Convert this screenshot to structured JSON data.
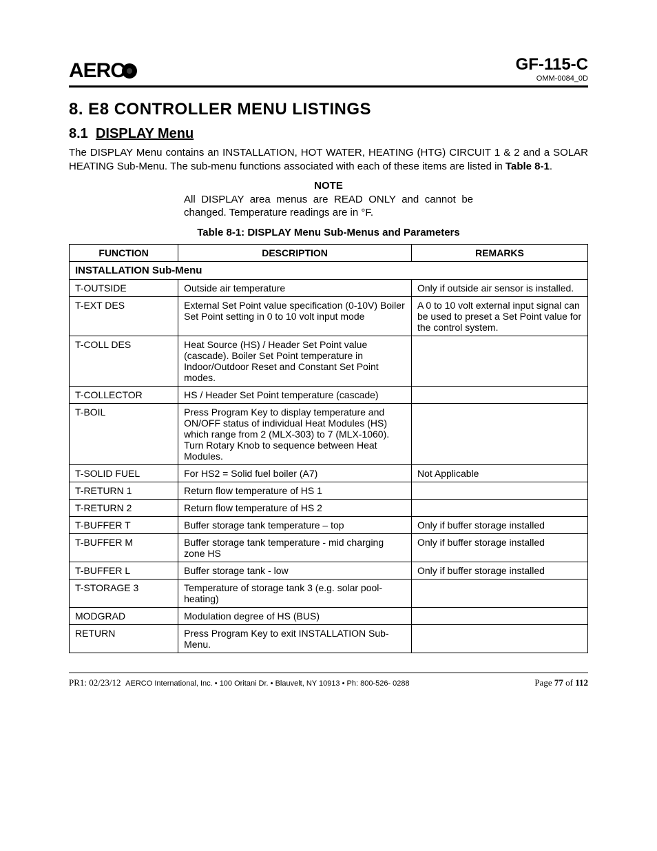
{
  "header": {
    "logo_text": "AERC",
    "doc_code": "GF-115-C",
    "doc_sub": "OMM-0084_0D"
  },
  "chapter": {
    "title": "8.  E8 CONTROLLER MENU LISTINGS"
  },
  "section": {
    "number": "8.1",
    "title": "DISPLAY Menu",
    "para": "The DISPLAY Menu contains an INSTALLATION, HOT WATER, HEATING (HTG) CIRCUIT 1 & 2 and a SOLAR HEATING Sub-Menu. The sub-menu functions associated with each of these items are listed in ",
    "para_bold": "Table 8-1",
    "para_tail": "."
  },
  "note": {
    "heading": "NOTE",
    "body": "All DISPLAY area menus are READ ONLY and cannot be changed. Temperature readings are in °F."
  },
  "table": {
    "caption": "Table 8-1:  DISPLAY Menu Sub-Menus and Parameters",
    "headers": {
      "function": "FUNCTION",
      "description": "DESCRIPTION",
      "remarks": "REMARKS"
    },
    "submenu_label": "INSTALLATION Sub-Menu",
    "rows": [
      {
        "f": "T-OUTSIDE",
        "d": "Outside air temperature",
        "r": "Only if outside air sensor is installed."
      },
      {
        "f": "T-EXT DES",
        "d": "External Set Point value specification (0-10V) Boiler Set Point setting in 0 to 10 volt input mode",
        "r": "A 0 to 10 volt external input signal can be used to preset a Set Point value for the control system."
      },
      {
        "f": "T-COLL DES",
        "d": "Heat Source (HS) / Header Set Point value (cascade). Boiler Set Point temperature in Indoor/Outdoor Reset and Constant Set Point modes.",
        "r": ""
      },
      {
        "f": "T-COLLECTOR",
        "d": "HS / Header Set Point temperature (cascade)",
        "r": ""
      },
      {
        "f": "T-BOIL",
        "d": "Press Program Key to display temperature and ON/OFF status of individual Heat Modules (HS) which range from 2 (MLX-303) to 7 (MLX-1060). Turn Rotary Knob to sequence between Heat Modules.",
        "r": ""
      },
      {
        "f": "T-SOLID FUEL",
        "d": "For HS2 = Solid fuel boiler (A7)",
        "r": "Not Applicable"
      },
      {
        "f": "T-RETURN 1",
        "d": "Return flow temperature of HS 1",
        "r": ""
      },
      {
        "f": "T-RETURN 2",
        "d": "Return flow temperature of HS 2",
        "r": ""
      },
      {
        "f": "T-BUFFER T",
        "d": "Buffer storage tank temperature – top",
        "r": "Only if buffer storage installed"
      },
      {
        "f": "T-BUFFER M",
        "d": "Buffer storage tank temperature  - mid charging zone HS",
        "r": "Only if buffer storage installed"
      },
      {
        "f": "T-BUFFER L",
        "d": "Buffer storage tank  - low",
        "r": "Only if buffer storage installed"
      },
      {
        "f": "T-STORAGE 3",
        "d": "Temperature of storage tank 3 (e.g. solar pool-heating)",
        "r": ""
      },
      {
        "f": "MODGRAD",
        "d": "Modulation degree of HS (BUS)",
        "r": ""
      },
      {
        "f": "RETURN",
        "d": "Press Program Key to exit INSTALLATION Sub-Menu.",
        "r": ""
      }
    ]
  },
  "footer": {
    "pr": "PR1: 02/23/12",
    "company": "AERCO International, Inc. • 100 Oritani Dr. • Blauvelt, NY 10913 • Ph: 800-526- 0288",
    "page_label": "Page ",
    "page_num": "77",
    "of_label": " of ",
    "total": "112"
  }
}
